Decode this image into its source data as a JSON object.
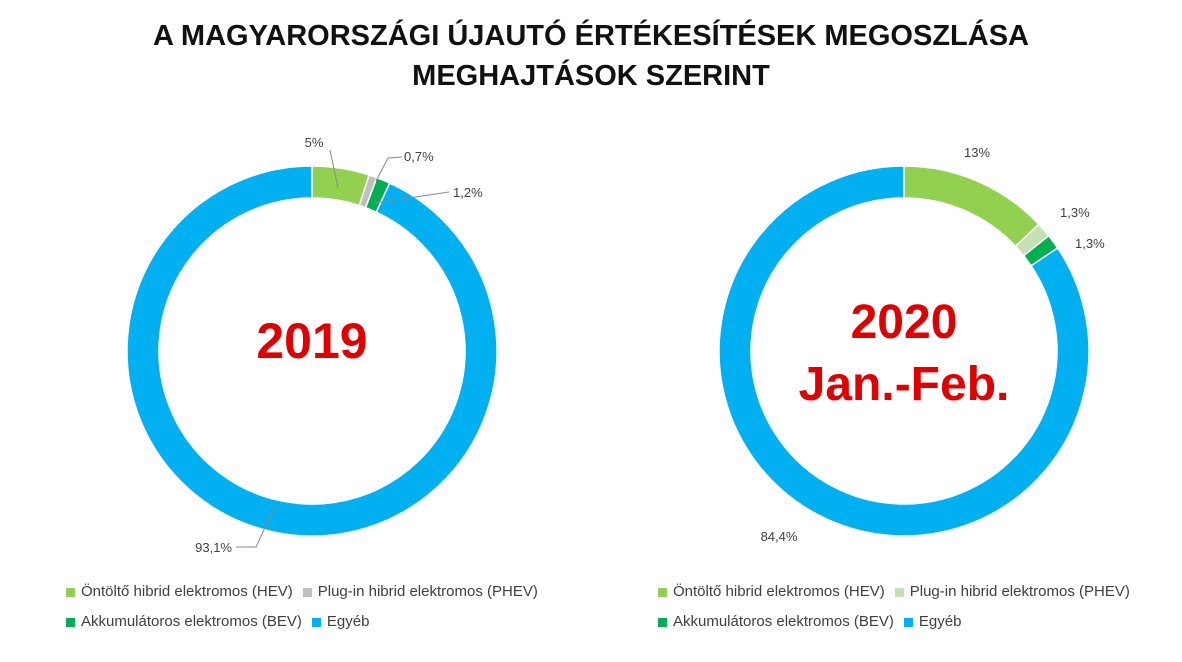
{
  "title_line1": "A MAGYARORSZÁGI ÚJAUTÓ ÉRTÉKESÍTÉSEK MEGOSZLÁSA",
  "title_line2": "MEGHAJTÁSOK SZERINT",
  "chart_data": [
    {
      "type": "pie",
      "variant": "donut",
      "center_label": [
        "2019"
      ],
      "categories": [
        "Öntöltő hibrid elektromos (HEV)",
        "Plug-in hibrid elektromos (PHEV)",
        "Akkumulátoros elektromos (BEV)",
        "Egyéb"
      ],
      "values": [
        5,
        0.7,
        1.2,
        93.1
      ],
      "data_labels": [
        "5%",
        "0,7%",
        "1,2%",
        "93,1%"
      ],
      "colors": [
        "#92d050",
        "#bfbfbf",
        "#00b050",
        "#00b0f0"
      ],
      "legend_position": "bottom"
    },
    {
      "type": "pie",
      "variant": "donut",
      "center_label": [
        "2020",
        "Jan.-Feb."
      ],
      "categories": [
        "Öntöltő hibrid elektromos (HEV)",
        "Plug-in hibrid elektromos (PHEV)",
        "Akkumulátoros elektromos (BEV)",
        "Egyéb"
      ],
      "values": [
        13,
        1.3,
        1.3,
        84.4
      ],
      "data_labels": [
        "13%",
        "1,3%",
        "1,3%",
        "84,4%"
      ],
      "colors": [
        "#92d050",
        "#c5e0b4",
        "#00b050",
        "#00b0f0"
      ],
      "legend_position": "bottom"
    }
  ]
}
